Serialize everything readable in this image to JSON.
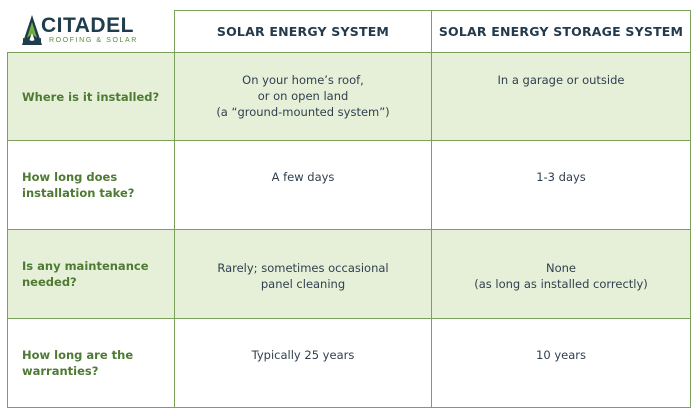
{
  "brand": {
    "name": "CITADEL",
    "tagline": "ROOFING & SOLAR"
  },
  "columns": [
    "SOLAR ENERGY SYSTEM",
    "SOLAR ENERGY STORAGE SYSTEM"
  ],
  "rows": [
    {
      "question": [
        "Where is it installed?"
      ],
      "solar": [
        "On your home’s roof,",
        "or on open land",
        "(a “ground-mounted system”)"
      ],
      "storage": [
        "In a garage or outside"
      ]
    },
    {
      "question": [
        "How long does",
        "installation take?"
      ],
      "solar": [
        "A few days"
      ],
      "storage": [
        "1-3 days"
      ]
    },
    {
      "question": [
        "Is any maintenance",
        "needed?"
      ],
      "solar": [
        "Rarely; sometimes occasional",
        "panel cleaning"
      ],
      "storage": [
        "None",
        "(as long as installed correctly)"
      ]
    },
    {
      "question": [
        "How long are the",
        "warranties?"
      ],
      "solar": [
        "Typically 25 years"
      ],
      "storage": [
        "10 years"
      ]
    }
  ],
  "colors": {
    "accent_green": "#7aa05a",
    "shade": "#e6f0d8",
    "label_green": "#4e7a33",
    "navy": "#233a4c"
  }
}
